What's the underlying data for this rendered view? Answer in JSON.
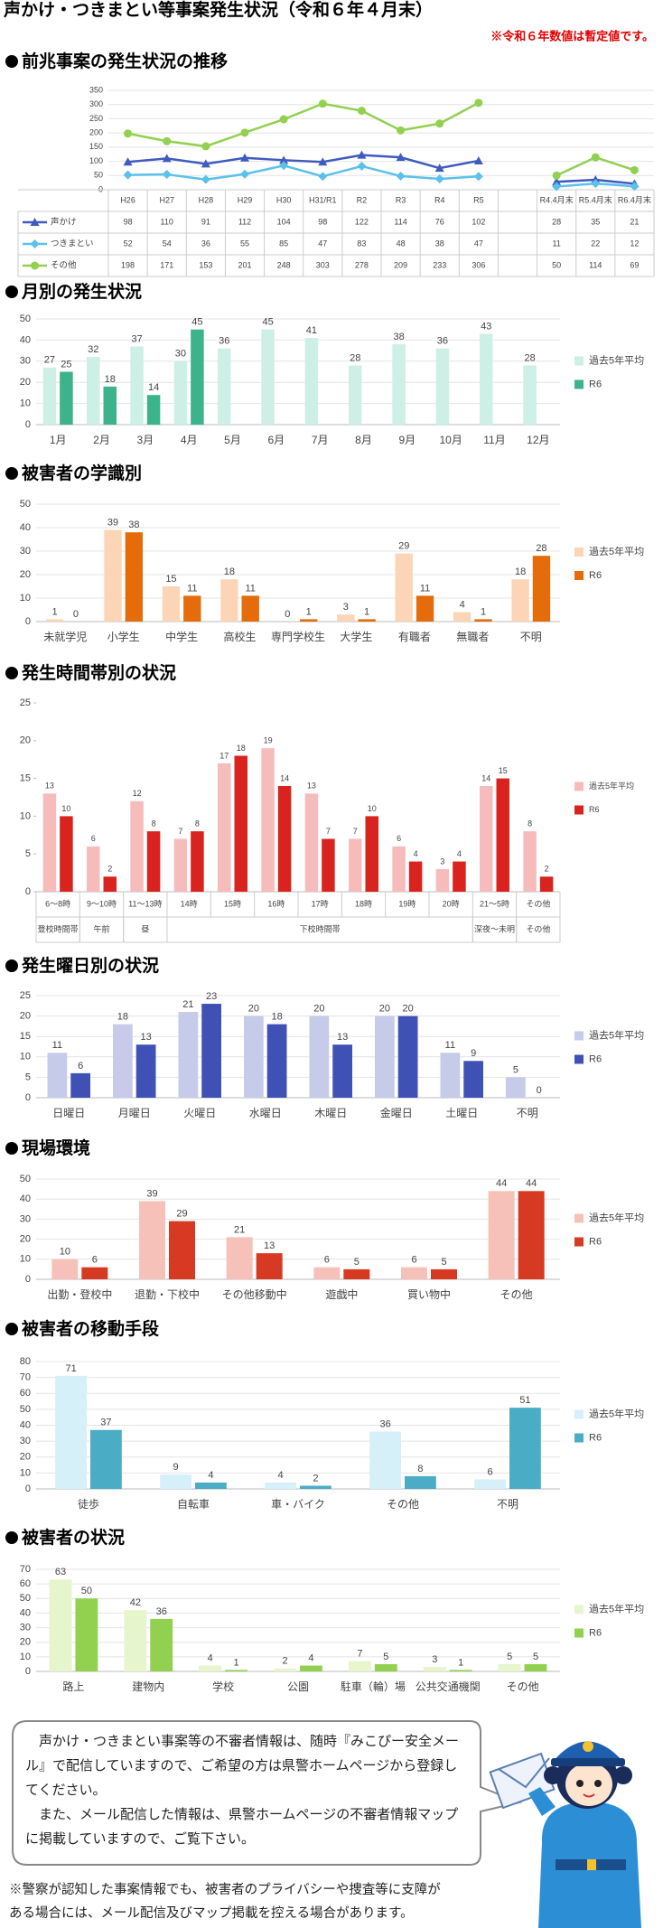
{
  "title": "声かけ・つきまとい等事案発生状況（令和６年４月末）",
  "note": "※令和６年数値は暫定値です。",
  "chart_data": [
    {
      "type": "line",
      "title": "前兆事案の発生状況の推移",
      "categories": [
        "H26",
        "H27",
        "H28",
        "H29",
        "H30",
        "H31/R1",
        "R2",
        "R3",
        "R4",
        "R5",
        null,
        "R4.4月末",
        "R5.4月末",
        "R6.4月末"
      ],
      "series": [
        {
          "name": "声かけ",
          "color": "#3f5bbf",
          "marker": "triangle",
          "values": [
            98,
            110,
            91,
            112,
            104,
            98,
            122,
            114,
            76,
            102,
            null,
            28,
            35,
            21
          ]
        },
        {
          "name": "つきまとい",
          "color": "#5bc0eb",
          "marker": "diamond",
          "values": [
            52,
            54,
            36,
            55,
            85,
            47,
            83,
            48,
            38,
            47,
            null,
            11,
            22,
            12
          ]
        },
        {
          "name": "その他",
          "color": "#92d050",
          "marker": "circle",
          "values": [
            198,
            171,
            153,
            201,
            248,
            303,
            278,
            209,
            233,
            306,
            null,
            50,
            114,
            69
          ]
        }
      ],
      "ylim": [
        0,
        350
      ],
      "yticks": [
        0,
        50,
        100,
        150,
        200,
        250,
        300,
        350
      ],
      "grid": true
    },
    {
      "type": "bar",
      "title": "月別の発生状況",
      "categories": [
        "1月",
        "2月",
        "3月",
        "4月",
        "5月",
        "6月",
        "7月",
        "8月",
        "9月",
        "10月",
        "11月",
        "12月"
      ],
      "series": [
        {
          "name": "過去5年平均",
          "color": "#cdefe6",
          "values": [
            27,
            32,
            37,
            30,
            36,
            45,
            41,
            28,
            38,
            36,
            43,
            28
          ]
        },
        {
          "name": "R6",
          "color": "#3cb38a",
          "values": [
            25,
            18,
            14,
            45,
            null,
            null,
            null,
            null,
            null,
            null,
            null,
            null
          ]
        }
      ],
      "ylim": [
        0,
        50
      ],
      "yticks": [
        0,
        10,
        20,
        30,
        40,
        50
      ],
      "grid": true
    },
    {
      "type": "bar",
      "title": "被害者の学識別",
      "categories": [
        "未就学児",
        "小学生",
        "中学生",
        "高校生",
        "専門学校生",
        "大学生",
        "有職者",
        "無職者",
        "不明"
      ],
      "series": [
        {
          "name": "過去5年平均",
          "color": "#fbd5b5",
          "values": [
            1,
            39,
            15,
            18,
            0,
            3,
            29,
            4,
            18
          ]
        },
        {
          "name": "R6",
          "color": "#e46c0a",
          "values": [
            0,
            38,
            11,
            11,
            1,
            1,
            11,
            1,
            28
          ]
        }
      ],
      "ylim": [
        0,
        50
      ],
      "yticks": [
        0,
        10,
        20,
        30,
        40,
        50
      ],
      "grid": true
    },
    {
      "type": "bar",
      "title": "発生時間帯別の状況",
      "categories": [
        "6～8時",
        "9～10時",
        "11～13時",
        "14時",
        "15時",
        "16時",
        "17時",
        "18時",
        "19時",
        "20時",
        "21～5時",
        "その他"
      ],
      "category_groups": [
        {
          "label": "登校時間帯",
          "members": [
            "6～8時"
          ]
        },
        {
          "label": "午前",
          "members": [
            "9～10時"
          ]
        },
        {
          "label": "昼",
          "members": [
            "11～13時"
          ]
        },
        {
          "label": "下校時間帯",
          "members": [
            "14時",
            "15時",
            "16時",
            "17時",
            "18時",
            "19時",
            "20時"
          ]
        },
        {
          "label": "深夜～未明",
          "members": [
            "21～5時"
          ]
        },
        {
          "label": "その他",
          "members": [
            "その他"
          ]
        }
      ],
      "series": [
        {
          "name": "過去5年平均",
          "color": "#f6bcbc",
          "values": [
            13,
            6,
            12,
            7,
            17,
            19,
            13,
            7,
            6,
            3,
            14,
            8
          ]
        },
        {
          "name": "R6",
          "color": "#d9231e",
          "values": [
            10,
            2,
            8,
            8,
            18,
            14,
            7,
            10,
            4,
            4,
            15,
            2
          ]
        }
      ],
      "ylim": [
        0,
        25
      ],
      "yticks": [
        0,
        5,
        10,
        15,
        20,
        25
      ],
      "grid": false
    },
    {
      "type": "bar",
      "title": "発生曜日別の状況",
      "categories": [
        "日曜日",
        "月曜日",
        "火曜日",
        "水曜日",
        "木曜日",
        "金曜日",
        "土曜日",
        "不明"
      ],
      "series": [
        {
          "name": "過去5年平均",
          "color": "#c5cbe9",
          "values": [
            11,
            18,
            21,
            20,
            20,
            20,
            11,
            5
          ]
        },
        {
          "name": "R6",
          "color": "#3f51b5",
          "values": [
            6,
            13,
            23,
            18,
            13,
            20,
            9,
            0
          ]
        }
      ],
      "ylim": [
        0,
        25
      ],
      "yticks": [
        0,
        5,
        10,
        15,
        20,
        25
      ],
      "grid": true
    },
    {
      "type": "bar",
      "title": "現場環境",
      "categories": [
        "出勤・登校中",
        "退勤・下校中",
        "その他移動中",
        "遊戯中",
        "買い物中",
        "その他"
      ],
      "series": [
        {
          "name": "過去5年平均",
          "color": "#f6c1b8",
          "values": [
            10,
            39,
            21,
            6,
            6,
            44
          ]
        },
        {
          "name": "R6",
          "color": "#d63a22",
          "values": [
            6,
            29,
            13,
            5,
            5,
            44
          ]
        }
      ],
      "ylim": [
        0,
        50
      ],
      "yticks": [
        0,
        10,
        20,
        30,
        40,
        50
      ],
      "grid": true
    },
    {
      "type": "bar",
      "title": "被害者の移動手段",
      "categories": [
        "徒歩",
        "自転車",
        "車・バイク",
        "その他",
        "不明"
      ],
      "series": [
        {
          "name": "過去5年平均",
          "color": "#d5f0f8",
          "values": [
            71,
            9,
            4,
            36,
            6
          ]
        },
        {
          "name": "R6",
          "color": "#4bacc6",
          "values": [
            37,
            4,
            2,
            8,
            51
          ]
        }
      ],
      "ylim": [
        0,
        80
      ],
      "yticks": [
        0,
        10,
        20,
        30,
        40,
        50,
        60,
        70,
        80
      ],
      "grid": true
    },
    {
      "type": "bar",
      "title": "被害者の状況",
      "categories": [
        "路上",
        "建物内",
        "学校",
        "公園",
        "駐車（輪）場",
        "公共交通機関",
        "その他"
      ],
      "series": [
        {
          "name": "過去5年平均",
          "color": "#e6f5cc",
          "values": [
            63,
            42,
            4,
            2,
            7,
            3,
            5
          ]
        },
        {
          "name": "R6",
          "color": "#92d050",
          "values": [
            50,
            36,
            1,
            4,
            5,
            1,
            5
          ]
        }
      ],
      "ylim": [
        0,
        70
      ],
      "yticks": [
        0,
        10,
        20,
        30,
        40,
        50,
        60,
        70
      ],
      "grid": true
    }
  ],
  "message": [
    "　声かけ・つきまとい事案等の不審者情報は、随時『みこぴー安全メー",
    "ル』で配信していますので、ご希望の方は県警ホームページから登録し",
    "てください。",
    "　また、メール配信した情報は、県警ホームページの不審者情報マップ",
    "に掲載していますので、ご覧下さい。"
  ],
  "footnote": [
    "※警察が認知した事案情報でも、被害者のプライバシーや捜査等に支障が",
    "ある場合には、メール配信及びマップ掲載を控える場合があります。"
  ]
}
